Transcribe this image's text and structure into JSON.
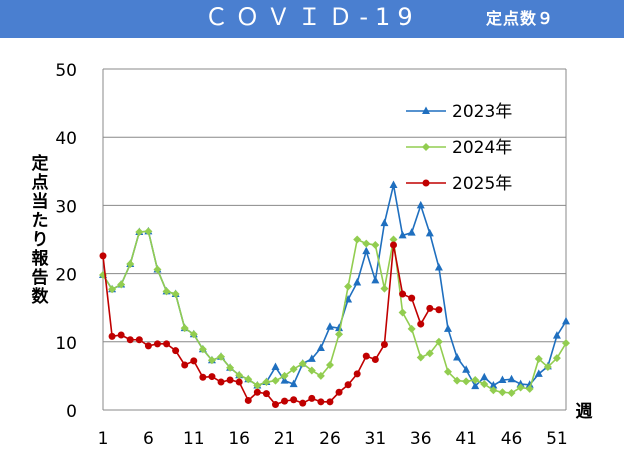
{
  "header": {
    "title": "ＣＯＶＩＤ-19",
    "subtitle": "定点数９"
  },
  "colors": {
    "header_bg": "#4a7fd0",
    "s2023": "#1f6fbf",
    "s2024": "#92cd50",
    "s2025": "#c00000"
  },
  "chart_data": {
    "type": "line",
    "ylabel": "定点当たり報告数",
    "xlabel": "週",
    "ylim": [
      0,
      50
    ],
    "yticks": [
      "0",
      "10",
      "20",
      "30",
      "40",
      "50"
    ],
    "xticks": [
      1,
      6,
      11,
      16,
      21,
      26,
      31,
      36,
      41,
      46,
      51
    ],
    "xlim": [
      1,
      52
    ],
    "grid": true,
    "legend_position": "top-right",
    "series": [
      {
        "name": "2023年",
        "marker": "triangle",
        "color_key": "s2023",
        "values": [
          19.8,
          17.7,
          18.4,
          21.4,
          26.1,
          26.2,
          20.6,
          17.4,
          17.0,
          12.0,
          11.1,
          8.9,
          7.3,
          7.8,
          6.2,
          5.1,
          4.5,
          3.6,
          4.1,
          6.3,
          4.3,
          3.8,
          6.8,
          7.5,
          9.1,
          12.2,
          12.0,
          16.2,
          18.7,
          23.3,
          19.0,
          27.4,
          33.0,
          25.6,
          26.0,
          30.0,
          25.9,
          20.9,
          11.9,
          7.7,
          5.9,
          3.5,
          4.8,
          3.6,
          4.4,
          4.5,
          3.8,
          3.7,
          5.3,
          6.4,
          10.9,
          13.0
        ]
      },
      {
        "name": "2024年",
        "marker": "diamond",
        "color_key": "s2024",
        "values": [
          19.8,
          17.7,
          18.4,
          21.4,
          26.1,
          26.2,
          20.6,
          17.4,
          17.0,
          12.0,
          11.1,
          8.9,
          7.3,
          7.8,
          6.2,
          5.1,
          4.5,
          3.6,
          4.1,
          4.3,
          5.0,
          6.0,
          6.8,
          5.8,
          5.0,
          6.6,
          11.1,
          18.1,
          25.0,
          24.4,
          24.2,
          17.8,
          25.0,
          14.3,
          11.9,
          7.7,
          8.3,
          10.0,
          5.6,
          4.3,
          4.2,
          4.4,
          3.8,
          2.9,
          2.6,
          2.5,
          3.3,
          3.1,
          7.5,
          6.3,
          7.6,
          9.8
        ]
      },
      {
        "name": "2025年",
        "marker": "circle",
        "color_key": "s2025",
        "values": [
          22.6,
          10.8,
          11.0,
          10.3,
          10.3,
          9.4,
          9.7,
          9.7,
          8.7,
          6.6,
          7.2,
          4.8,
          4.9,
          4.1,
          4.4,
          4.1,
          1.4,
          2.6,
          2.4,
          0.8,
          1.3,
          1.5,
          1.0,
          1.7,
          1.2,
          1.2,
          2.6,
          3.7,
          5.3,
          7.9,
          7.4,
          9.6,
          24.2,
          17.0,
          16.4,
          12.6,
          14.9,
          14.7
        ]
      }
    ]
  }
}
